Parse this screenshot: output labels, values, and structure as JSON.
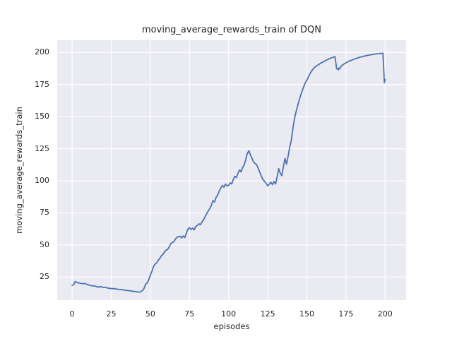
{
  "figure": {
    "background_color": "#ffffff"
  },
  "chart_data": {
    "type": "line",
    "title": "moving_average_rewards_train of DQN",
    "xlabel": "episodes",
    "ylabel": "moving_average_rewards_train",
    "x_ticks": [
      0,
      25,
      50,
      75,
      100,
      125,
      150,
      175,
      200
    ],
    "y_ticks": [
      25,
      50,
      75,
      100,
      125,
      150,
      175,
      200
    ],
    "xlim": [
      -9.5,
      213.4
    ],
    "ylim": [
      7.0,
      209.6
    ],
    "grid": true,
    "legend": "none",
    "style": {
      "axes_background": "#eaeaf2",
      "grid_color": "#ffffff",
      "line_color": "#4c72b0",
      "text_color": "#262626",
      "line_width": 1.8
    },
    "series": [
      {
        "name": "moving_average_rewards_train",
        "points": [
          [
            0,
            18.5
          ],
          [
            1,
            19.0
          ],
          [
            2,
            21.5
          ],
          [
            3,
            21.0
          ],
          [
            4,
            20.5
          ],
          [
            5,
            20.2
          ],
          [
            6,
            20.0
          ],
          [
            7,
            19.7
          ],
          [
            8,
            20.1
          ],
          [
            9,
            19.4
          ],
          [
            10,
            19.2
          ],
          [
            11,
            18.8
          ],
          [
            12,
            18.4
          ],
          [
            13,
            18.0
          ],
          [
            14,
            18.3
          ],
          [
            15,
            17.8
          ],
          [
            16,
            17.4
          ],
          [
            17,
            17.1
          ],
          [
            18,
            17.7
          ],
          [
            19,
            17.2
          ],
          [
            20,
            16.9
          ],
          [
            21,
            17.1
          ],
          [
            22,
            16.7
          ],
          [
            23,
            16.4
          ],
          [
            24,
            16.2
          ],
          [
            25,
            16.1
          ],
          [
            26,
            15.9
          ],
          [
            27,
            16.1
          ],
          [
            28,
            15.7
          ],
          [
            29,
            15.5
          ],
          [
            30,
            15.4
          ],
          [
            31,
            15.2
          ],
          [
            32,
            15.3
          ],
          [
            33,
            14.9
          ],
          [
            34,
            14.7
          ],
          [
            35,
            14.6
          ],
          [
            36,
            14.4
          ],
          [
            37,
            14.3
          ],
          [
            38,
            14.1
          ],
          [
            39,
            13.9
          ],
          [
            40,
            13.7
          ],
          [
            41,
            13.6
          ],
          [
            42,
            13.4
          ],
          [
            43,
            13.3
          ],
          [
            44,
            13.6
          ],
          [
            45,
            14.6
          ],
          [
            46,
            16.2
          ],
          [
            47,
            19.5
          ],
          [
            47.5,
            20.0
          ],
          [
            48,
            20.3
          ],
          [
            49,
            23.0
          ],
          [
            50,
            26.5
          ],
          [
            51,
            29.5
          ],
          [
            52,
            33.0
          ],
          [
            53,
            35.0
          ],
          [
            54,
            36.0
          ],
          [
            55,
            38.0
          ],
          [
            56,
            39.5
          ],
          [
            57,
            41.5
          ],
          [
            58,
            42.5
          ],
          [
            59,
            44.5
          ],
          [
            60,
            46.0
          ],
          [
            61,
            46.5
          ],
          [
            62,
            48.5
          ],
          [
            63,
            51.0
          ],
          [
            64,
            52.0
          ],
          [
            65,
            52.5
          ],
          [
            66,
            54.5
          ],
          [
            67,
            56.0
          ],
          [
            68,
            56.5
          ],
          [
            69,
            56.8
          ],
          [
            70,
            55.5
          ],
          [
            71,
            57.0
          ],
          [
            72,
            55.8
          ],
          [
            73,
            59.0
          ],
          [
            74,
            62.5
          ],
          [
            75,
            63.5
          ],
          [
            76,
            62.0
          ],
          [
            77,
            63.2
          ],
          [
            78,
            61.8
          ],
          [
            79,
            64.5
          ],
          [
            80,
            65.2
          ],
          [
            81,
            66.5
          ],
          [
            82,
            65.8
          ],
          [
            83,
            68.0
          ],
          [
            84,
            69.5
          ],
          [
            85,
            72.0
          ],
          [
            86,
            74.5
          ],
          [
            87,
            76.5
          ],
          [
            88,
            78.5
          ],
          [
            89,
            81.0
          ],
          [
            90,
            84.5
          ],
          [
            91,
            83.5
          ],
          [
            92,
            87.0
          ],
          [
            93,
            89.0
          ],
          [
            94,
            92.0
          ],
          [
            95,
            94.5
          ],
          [
            96,
            96.5
          ],
          [
            97,
            95.0
          ],
          [
            98,
            97.5
          ],
          [
            99,
            96.0
          ],
          [
            100,
            96.5
          ],
          [
            101,
            98.5
          ],
          [
            102,
            97.5
          ],
          [
            103,
            101.0
          ],
          [
            104,
            103.5
          ],
          [
            105,
            102.5
          ],
          [
            106,
            106.0
          ],
          [
            107,
            108.5
          ],
          [
            108,
            107.0
          ],
          [
            109,
            110.5
          ],
          [
            110,
            112.5
          ],
          [
            111,
            117.0
          ],
          [
            112,
            121.5
          ],
          [
            113,
            123.5
          ],
          [
            114,
            120.0
          ],
          [
            115,
            117.5
          ],
          [
            116,
            114.5
          ],
          [
            117,
            113.5
          ],
          [
            118,
            112.5
          ],
          [
            119,
            109.5
          ],
          [
            120,
            106.5
          ],
          [
            121,
            103.5
          ],
          [
            122,
            101.0
          ],
          [
            123,
            99.5
          ],
          [
            124,
            98.0
          ],
          [
            125,
            96.0
          ],
          [
            126,
            97.5
          ],
          [
            127,
            99.0
          ],
          [
            128,
            97.0
          ],
          [
            129,
            99.5
          ],
          [
            130,
            97.5
          ],
          [
            131,
            103.0
          ],
          [
            132,
            109.5
          ],
          [
            133,
            106.0
          ],
          [
            134,
            104.0
          ],
          [
            135,
            111.0
          ],
          [
            136,
            117.5
          ],
          [
            137,
            113.0
          ],
          [
            138,
            119.0
          ],
          [
            139,
            126.0
          ],
          [
            140,
            131.0
          ],
          [
            141,
            140.0
          ],
          [
            142,
            148.0
          ],
          [
            143,
            153.5
          ],
          [
            144,
            158.0
          ],
          [
            145,
            162.5
          ],
          [
            146,
            166.5
          ],
          [
            147,
            170.0
          ],
          [
            148,
            173.5
          ],
          [
            149,
            176.5
          ],
          [
            150,
            178.5
          ],
          [
            151,
            181.0
          ],
          [
            152,
            183.5
          ],
          [
            153,
            185.5
          ],
          [
            154,
            187.3
          ],
          [
            155,
            188.5
          ],
          [
            156,
            189.5
          ],
          [
            157,
            190.2
          ],
          [
            158,
            191.0
          ],
          [
            159,
            191.8
          ],
          [
            160,
            192.5
          ],
          [
            161,
            193.2
          ],
          [
            162,
            193.8
          ],
          [
            163,
            194.4
          ],
          [
            164,
            195.0
          ],
          [
            165,
            195.5
          ],
          [
            166,
            196.0
          ],
          [
            167,
            196.5
          ],
          [
            168,
            196.8
          ],
          [
            169,
            187.5
          ],
          [
            170,
            186.5
          ],
          [
            170.5,
            188.0
          ],
          [
            171,
            187.3
          ],
          [
            172,
            189.5
          ],
          [
            173,
            190.5
          ],
          [
            174,
            191.3
          ],
          [
            175,
            192.0
          ],
          [
            176,
            192.7
          ],
          [
            177,
            193.3
          ],
          [
            178,
            193.8
          ],
          [
            179,
            194.3
          ],
          [
            180,
            194.8
          ],
          [
            181,
            195.2
          ],
          [
            182,
            195.6
          ],
          [
            183,
            196.0
          ],
          [
            184,
            196.4
          ],
          [
            185,
            196.7
          ],
          [
            186,
            197.0
          ],
          [
            187,
            197.3
          ],
          [
            188,
            197.6
          ],
          [
            189,
            197.9
          ],
          [
            190,
            198.1
          ],
          [
            191,
            198.3
          ],
          [
            192,
            198.5
          ],
          [
            193,
            198.7
          ],
          [
            194,
            198.9
          ],
          [
            195,
            199.1
          ],
          [
            196,
            199.2
          ],
          [
            197,
            199.3
          ],
          [
            198,
            199.4
          ],
          [
            198.6,
            199.5
          ],
          [
            199,
            190.0
          ],
          [
            199.5,
            176.5
          ],
          [
            200,
            179.0
          ]
        ]
      }
    ]
  }
}
